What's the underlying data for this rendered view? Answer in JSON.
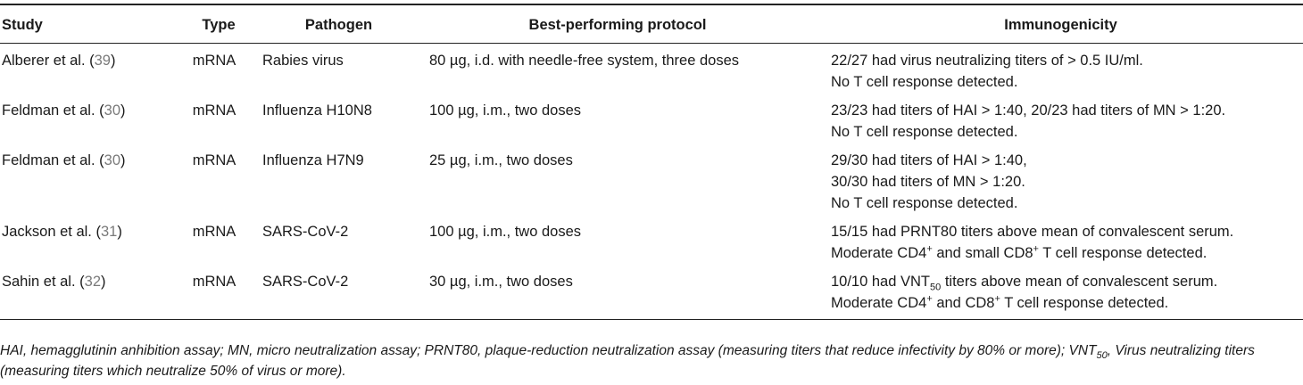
{
  "table": {
    "headers": {
      "study": "Study",
      "type": "Type",
      "pathogen": "Pathogen",
      "protocol": "Best-performing protocol",
      "immunogenicity": "Immunogenicity"
    },
    "rows": [
      {
        "study_pre": "Alberer et al. (",
        "study_ref": "39",
        "study_post": ")",
        "type": "mRNA",
        "pathogen": "Rabies virus",
        "protocol": "80 µg, i.d. with needle-free system, three doses",
        "imm": [
          "22/27 had virus neutralizing titers of > 0.5 IU/ml.",
          "No T cell response detected."
        ]
      },
      {
        "study_pre": "Feldman et al. (",
        "study_ref": "30",
        "study_post": ")",
        "type": "mRNA",
        "pathogen": "Influenza H10N8",
        "protocol": "100 µg, i.m., two doses",
        "imm": [
          "23/23 had titers of HAI > 1:40, 20/23 had titers of MN > 1:20.",
          "No T cell response detected."
        ]
      },
      {
        "study_pre": "Feldman et al. (",
        "study_ref": "30",
        "study_post": ")",
        "type": "mRNA",
        "pathogen": "Influenza H7N9",
        "protocol": "25 µg, i.m., two doses",
        "imm": [
          "29/30 had titers of HAI > 1:40,",
          "30/30 had titers of MN > 1:20.",
          "No T cell response detected."
        ]
      },
      {
        "study_pre": "Jackson et al. (",
        "study_ref": "31",
        "study_post": ")",
        "type": "mRNA",
        "pathogen": "SARS-CoV-2",
        "protocol": "100 µg, i.m., two doses",
        "imm_1": "15/15 had PRNT80 titers above mean of convalescent serum.",
        "imm_2a": "Moderate CD4",
        "imm_2sup1": "+",
        "imm_2b": " and small CD8",
        "imm_2sup2": "+",
        "imm_2c": " T cell response detected."
      },
      {
        "study_pre": "Sahin et al. (",
        "study_ref": "32",
        "study_post": ")",
        "type": "mRNA",
        "pathogen": "SARS-CoV-2",
        "protocol": "30 µg, i.m., two doses",
        "imm_1a": "10/10 had VNT",
        "imm_1sub": "50",
        "imm_1b": " titers above mean of convalescent serum.",
        "imm_2a": "Moderate CD4",
        "imm_2sup1": "+",
        "imm_2b": " and CD8",
        "imm_2sup2": "+",
        "imm_2c": " T cell response detected."
      }
    ]
  },
  "notes": {
    "part1": "HAI, hemagglutinin anhibition assay; MN, micro neutralization assay; PRNT80, plaque-reduction neutralization assay (measuring titers that reduce infectivity by 80% or more); VNT",
    "sub": "50",
    "part2": ", Virus neutralizing titers (measuring titers which neutralize 50% of virus or more)."
  }
}
